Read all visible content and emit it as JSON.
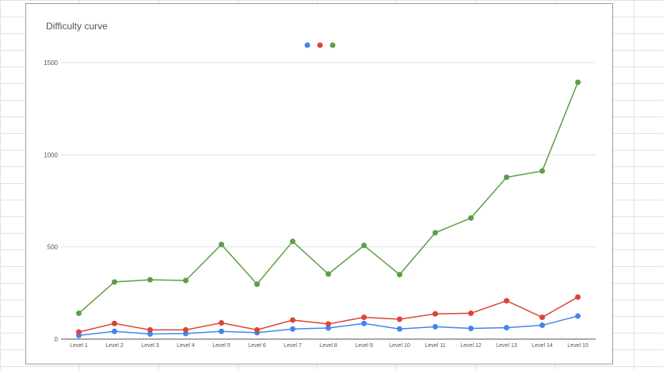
{
  "chart_data": {
    "type": "line",
    "title": "Difficulty curve",
    "xlabel": "",
    "ylabel": "",
    "categories": [
      "Level 1",
      "Level 2",
      "Level 3",
      "Level 4",
      "Level 5",
      "Level 6",
      "Level 7",
      "Level 8",
      "Level 9",
      "Level 10",
      "Level 11",
      "Level 12",
      "Level 13",
      "Level 14",
      "Level 15"
    ],
    "yticks": [
      0,
      500,
      1000,
      1500
    ],
    "ylim": [
      0,
      1500
    ],
    "grid": true,
    "legend": "top-center",
    "series": [
      {
        "color": "#4285f4",
        "values": [
          20,
          42,
          28,
          30,
          42,
          35,
          55,
          60,
          85,
          55,
          67,
          58,
          62,
          75,
          125
        ]
      },
      {
        "color": "#db4437",
        "values": [
          38,
          85,
          50,
          50,
          88,
          50,
          103,
          82,
          118,
          108,
          137,
          140,
          208,
          118,
          228
        ]
      },
      {
        "color": "#5e9e46",
        "values": [
          140,
          310,
          322,
          318,
          513,
          298,
          530,
          353,
          508,
          350,
          577,
          657,
          878,
          912,
          1393
        ]
      }
    ]
  }
}
